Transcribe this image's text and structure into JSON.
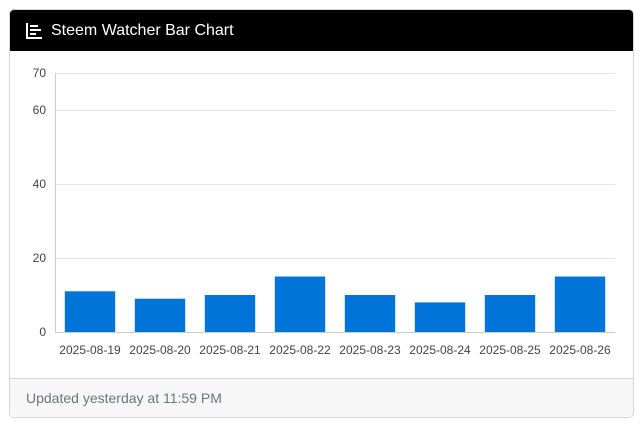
{
  "header": {
    "title": "Steem Watcher Bar Chart",
    "icon": "bar-chart-icon"
  },
  "footer": {
    "updated_text": "Updated yesterday at 11:59 PM"
  },
  "colors": {
    "header_bg": "#000000",
    "bar": "#0074d9",
    "grid": "#e6e6e6"
  },
  "chart_data": {
    "type": "bar",
    "title": "",
    "xlabel": "",
    "ylabel": "",
    "categories": [
      "2025-08-19",
      "2025-08-20",
      "2025-08-21",
      "2025-08-22",
      "2025-08-23",
      "2025-08-24",
      "2025-08-25",
      "2025-08-26"
    ],
    "values": [
      11,
      9,
      10,
      15,
      10,
      8,
      10,
      15
    ],
    "ylim": [
      0,
      70
    ],
    "yticks": [
      0,
      20,
      40,
      60,
      70
    ],
    "grid": true,
    "legend": "none"
  }
}
